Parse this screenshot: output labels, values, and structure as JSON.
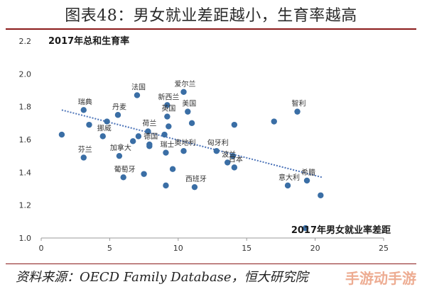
{
  "header": {
    "title": "图表48：男女就业差距越小，生育率越高"
  },
  "footer": {
    "source": "资料来源：OECD Family Database，恒大研究院",
    "watermark": "手游动手游"
  },
  "colors": {
    "point": "#3a6ea5",
    "trend": "#4a72b8",
    "title_rule": "#8b1a1a",
    "axis": "#999999"
  },
  "chart_data": {
    "type": "scatter",
    "ylabel": "2017年总和生育率",
    "xlabel": "2017年男女就业率差距",
    "xlim": [
      0,
      25
    ],
    "ylim": [
      1.0,
      2.2
    ],
    "xticks": [
      0,
      5,
      10,
      15,
      20,
      25
    ],
    "yticks": [
      1.0,
      1.2,
      1.4,
      1.6,
      1.8,
      2.0,
      2.2
    ],
    "trendline": {
      "x": [
        1.5,
        20.5
      ],
      "y": [
        1.78,
        1.37
      ]
    },
    "labeled_points": [
      {
        "label": "瑞典",
        "x": 3.1,
        "y": 1.78
      },
      {
        "label": "法国",
        "x": 7.0,
        "y": 1.87
      },
      {
        "label": "新西兰",
        "x": 9.2,
        "y": 1.81
      },
      {
        "label": "爱尔兰",
        "x": 10.4,
        "y": 1.89
      },
      {
        "label": "美国",
        "x": 10.7,
        "y": 1.77
      },
      {
        "label": "丹麦",
        "x": 5.6,
        "y": 1.75
      },
      {
        "label": "英国",
        "x": 9.2,
        "y": 1.74
      },
      {
        "label": "挪威",
        "x": 4.5,
        "y": 1.62
      },
      {
        "label": "荷兰",
        "x": 7.8,
        "y": 1.65
      },
      {
        "label": "德国",
        "x": 7.9,
        "y": 1.57
      },
      {
        "label": "瑞士",
        "x": 9.1,
        "y": 1.52
      },
      {
        "label": "奥地利",
        "x": 10.4,
        "y": 1.53
      },
      {
        "label": "匈牙利",
        "x": 12.8,
        "y": 1.53
      },
      {
        "label": "智利",
        "x": 18.7,
        "y": 1.77
      },
      {
        "label": "芬兰",
        "x": 3.1,
        "y": 1.49
      },
      {
        "label": "加拿大",
        "x": 5.7,
        "y": 1.5
      },
      {
        "label": "葡萄牙",
        "x": 6.0,
        "y": 1.37
      },
      {
        "label": "波兰",
        "x": 13.6,
        "y": 1.46
      },
      {
        "label": "日本",
        "x": 14.1,
        "y": 1.43
      },
      {
        "label": "西班牙",
        "x": 11.2,
        "y": 1.31
      },
      {
        "label": "希腊",
        "x": 19.4,
        "y": 1.35
      },
      {
        "label": "意大利",
        "x": 18.0,
        "y": 1.32
      }
    ],
    "unlabeled_points": [
      {
        "x": 1.5,
        "y": 1.63
      },
      {
        "x": 3.5,
        "y": 1.69
      },
      {
        "x": 4.8,
        "y": 1.71
      },
      {
        "x": 6.7,
        "y": 1.59
      },
      {
        "x": 7.1,
        "y": 1.62
      },
      {
        "x": 7.9,
        "y": 1.56
      },
      {
        "x": 9.0,
        "y": 1.63
      },
      {
        "x": 9.3,
        "y": 1.68
      },
      {
        "x": 11.0,
        "y": 1.7
      },
      {
        "x": 14.1,
        "y": 1.69
      },
      {
        "x": 17.0,
        "y": 1.71
      },
      {
        "x": 7.5,
        "y": 1.39
      },
      {
        "x": 9.1,
        "y": 1.32
      },
      {
        "x": 9.6,
        "y": 1.42
      },
      {
        "x": 14.0,
        "y": 1.5
      },
      {
        "x": 20.4,
        "y": 1.26
      },
      {
        "x": 19.3,
        "y": 1.06
      }
    ]
  }
}
